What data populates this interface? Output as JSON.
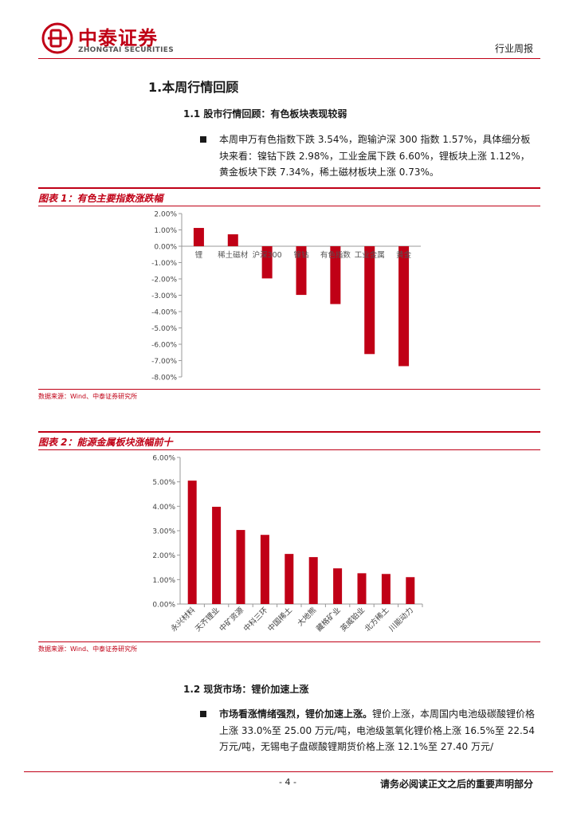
{
  "header": {
    "brand_cn": "中泰证券",
    "brand_en": "ZHONGTAI SECURITIES",
    "report_type": "行业周报"
  },
  "section1": {
    "title": "1.本周行情回顾",
    "sub_title": "1.1 股市行情回顾：有色板块表现较弱",
    "paragraph": "本周申万有色指数下跌 3.54%，跑输沪深 300 指数 1.57%，具体细分板块来看：镍钴下跌 2.98%，工业金属下跌 6.60%，锂板块上涨 1.12%，黄金板块下跌 7.34%，稀土磁材板块上涨 0.73%。"
  },
  "figure1": {
    "heading": "图表 1：有色主要指数涨跌幅",
    "source": "数据来源：Wind、中泰证券研究所"
  },
  "figure2": {
    "heading": "图表 2：能源金属板块涨幅前十",
    "source": "数据来源：Wind、中泰证券研究所"
  },
  "section12": {
    "sub_title": "1.2 现货市场：锂价加速上涨",
    "bold_lead": "市场看涨情绪强烈，锂价加速上涨。",
    "paragraph": "锂价上涨，本周国内电池级碳酸锂价格上涨 33.0%至 25.00 万元/吨，电池级氢氧化锂价格上涨 16.5%至 22.54 万元/吨，无锡电子盘碳酸锂期货价格上涨 12.1%至 27.40 万元/"
  },
  "footer": {
    "page": "- 4 -",
    "note": "请务必阅读正文之后的重要声明部分"
  },
  "colors": {
    "brand_red": "#c00016",
    "bar_red": "#c00016"
  },
  "chart_data": [
    {
      "type": "bar",
      "categories": [
        "锂",
        "稀土磁材",
        "沪深300",
        "镍钴",
        "有色指数",
        "工业金属",
        "黄金"
      ],
      "values": [
        1.12,
        0.73,
        -1.97,
        -2.98,
        -3.54,
        -6.6,
        -7.34
      ],
      "ylim": [
        -8,
        2
      ],
      "yticks": [
        "2.00%",
        "1.00%",
        "0.00%",
        "-1.00%",
        "-2.00%",
        "-3.00%",
        "-4.00%",
        "-5.00%",
        "-6.00%",
        "-7.00%",
        "-8.00%"
      ],
      "unit": "%",
      "grid": false
    },
    {
      "type": "bar",
      "categories": [
        "永兴材料",
        "天齐锂业",
        "中矿资源",
        "中科三环",
        "中国稀土",
        "大地熊",
        "藏格矿业",
        "英威铂业",
        "北方稀土",
        "川能动力"
      ],
      "values": [
        5.05,
        3.98,
        3.03,
        2.83,
        2.05,
        1.92,
        1.46,
        1.26,
        1.23,
        1.1
      ],
      "ylim": [
        0,
        6
      ],
      "yticks": [
        "6.00%",
        "5.00%",
        "4.00%",
        "3.00%",
        "2.00%",
        "1.00%",
        "0.00%"
      ],
      "unit": "%",
      "grid": false
    }
  ]
}
